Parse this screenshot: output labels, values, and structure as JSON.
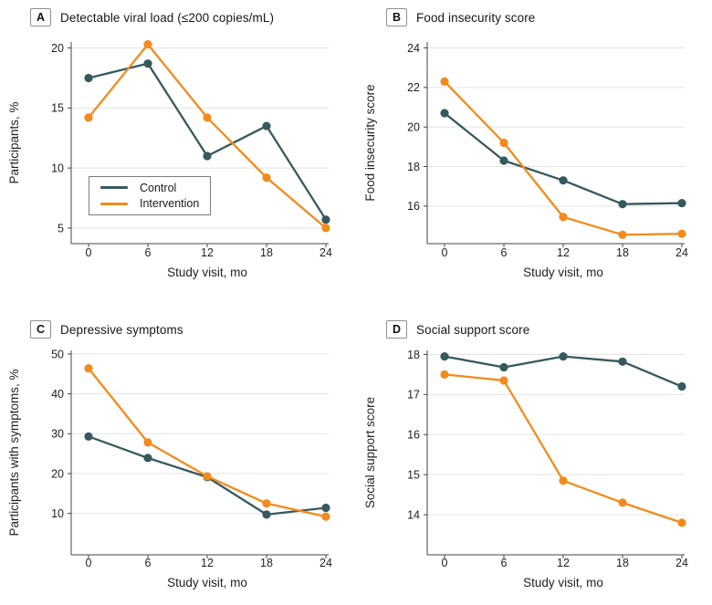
{
  "figure": {
    "background": "#ffffff",
    "colors": {
      "control": "#36595e",
      "intervention": "#f28b1d",
      "gridline": "#e3e3e3",
      "axis": "#454545",
      "text": "#1a1a1a"
    },
    "legend": {
      "position": "lower-left-of-panel-A",
      "entries": [
        {
          "label": "Control",
          "color_key": "control"
        },
        {
          "label": "Intervention",
          "color_key": "intervention"
        }
      ]
    }
  },
  "chart_data": [
    {
      "panel": "A",
      "type": "line",
      "title": "Detectable viral load (≤200 copies/mL)",
      "xlabel": "Study visit, mo",
      "ylabel": "Participants, %",
      "x": [
        0,
        6,
        12,
        18,
        24
      ],
      "yticks": [
        5,
        10,
        15,
        20
      ],
      "ylim": [
        3.7,
        20.5
      ],
      "grid": true,
      "legend": true,
      "series": [
        {
          "name": "Control",
          "color_key": "control",
          "values": [
            17.5,
            18.7,
            11.0,
            13.5,
            5.7
          ]
        },
        {
          "name": "Intervention",
          "color_key": "intervention",
          "values": [
            14.2,
            20.3,
            14.2,
            9.2,
            5.0
          ]
        }
      ]
    },
    {
      "panel": "B",
      "type": "line",
      "title": "Food insecurity score",
      "xlabel": "Study visit, mo",
      "ylabel": "Food insecurity score",
      "x": [
        0,
        6,
        12,
        18,
        24
      ],
      "yticks": [
        16,
        18,
        20,
        22,
        24
      ],
      "ylim": [
        14.1,
        24.3
      ],
      "grid": true,
      "legend": false,
      "series": [
        {
          "name": "Control",
          "color_key": "control",
          "values": [
            20.7,
            18.3,
            17.3,
            16.1,
            16.15
          ]
        },
        {
          "name": "Intervention",
          "color_key": "intervention",
          "values": [
            22.3,
            19.2,
            15.45,
            14.55,
            14.6
          ]
        }
      ]
    },
    {
      "panel": "C",
      "type": "line",
      "title": "Depressive symptoms",
      "xlabel": "Study visit, mo",
      "ylabel": "Participants with symptoms, %",
      "x": [
        0,
        6,
        12,
        18,
        24
      ],
      "yticks": [
        10,
        20,
        30,
        40,
        50
      ],
      "ylim": [
        -0.4,
        50.9
      ],
      "grid": true,
      "legend": false,
      "series": [
        {
          "name": "Control",
          "color_key": "control",
          "values": [
            29.3,
            23.9,
            19.1,
            9.7,
            11.4
          ]
        },
        {
          "name": "Intervention",
          "color_key": "intervention",
          "values": [
            46.4,
            27.8,
            19.3,
            12.5,
            9.2
          ]
        }
      ]
    },
    {
      "panel": "D",
      "type": "line",
      "title": "Social support score",
      "xlabel": "Study visit, mo",
      "ylabel": "Social support score",
      "x": [
        0,
        6,
        12,
        18,
        24
      ],
      "yticks": [
        14,
        15,
        16,
        17,
        18
      ],
      "ylim": [
        13.0,
        18.1
      ],
      "grid": true,
      "legend": false,
      "series": [
        {
          "name": "Control",
          "color_key": "control",
          "values": [
            17.95,
            17.68,
            17.95,
            17.82,
            17.2
          ]
        },
        {
          "name": "Intervention",
          "color_key": "intervention",
          "values": [
            17.5,
            17.35,
            14.85,
            14.3,
            13.8
          ]
        }
      ]
    }
  ]
}
